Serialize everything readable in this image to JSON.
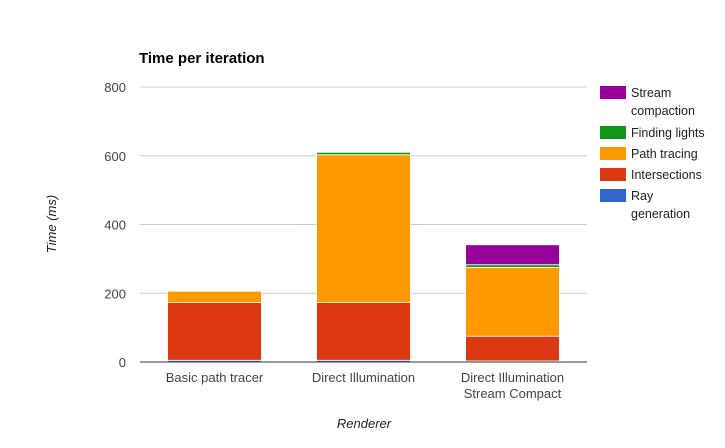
{
  "chart_data": {
    "type": "bar",
    "stacked": true,
    "title": "Time per iteration",
    "xlabel": "Renderer",
    "ylabel": "Time (ms)",
    "ylim": [
      0,
      800
    ],
    "yticks": [
      0,
      200,
      400,
      600,
      800
    ],
    "grid": true,
    "legend_position": "right",
    "categories": [
      [
        "Basic path tracer"
      ],
      [
        "Direct Illumination"
      ],
      [
        "Direct Illumination",
        "Stream Compact"
      ]
    ],
    "series": [
      {
        "name": "Ray generation",
        "color": "#3366cc",
        "values": [
          5,
          5,
          3
        ]
      },
      {
        "name": "Intersections",
        "color": "#dc3912",
        "values": [
          168,
          168,
          72
        ]
      },
      {
        "name": "Path tracing",
        "color": "#ff9900",
        "values": [
          33,
          430,
          200
        ]
      },
      {
        "name": "Finding lights",
        "color": "#109618",
        "values": [
          2,
          7,
          8
        ]
      },
      {
        "name": "Stream compaction",
        "color": "#990099",
        "values": [
          0,
          0,
          58
        ]
      }
    ],
    "legend_order": [
      "Stream compaction",
      "Finding lights",
      "Path tracing",
      "Intersections",
      "Ray generation"
    ],
    "legend_lines": {
      "Stream compaction": [
        "Stream",
        "compaction"
      ],
      "Finding lights": [
        "Finding lights"
      ],
      "Path tracing": [
        "Path tracing"
      ],
      "Intersections": [
        "Intersections"
      ],
      "Ray generation": [
        "Ray",
        "generation"
      ]
    }
  }
}
